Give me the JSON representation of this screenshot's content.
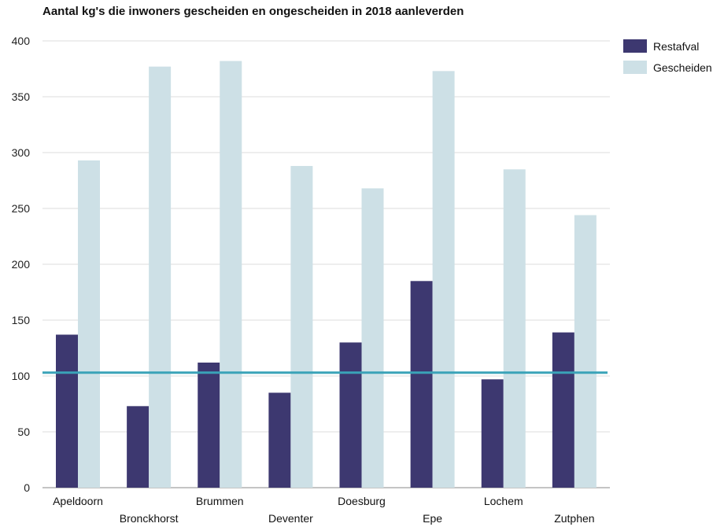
{
  "chart_data": {
    "type": "bar",
    "title": "Aantal kg's die inwoners gescheiden en ongescheiden in 2018 aanleverden",
    "categories": [
      "Apeldoorn",
      "Bronckhorst",
      "Brummen",
      "Deventer",
      "Doesburg",
      "Epe",
      "Lochem",
      "Zutphen"
    ],
    "series": [
      {
        "name": "Restafval",
        "color": "#3d3870",
        "values": [
          137,
          73,
          112,
          85,
          130,
          185,
          97,
          139
        ]
      },
      {
        "name": "Gescheiden",
        "color": "#cde0e6",
        "values": [
          293,
          377,
          382,
          288,
          268,
          373,
          285,
          244
        ]
      }
    ],
    "ylim": [
      0,
      400
    ],
    "yticks": [
      0,
      50,
      100,
      150,
      200,
      250,
      300,
      350,
      400
    ],
    "grid": true,
    "legend": "top-right",
    "reference_line": {
      "value": 103,
      "color": "#3aa3b8"
    }
  }
}
